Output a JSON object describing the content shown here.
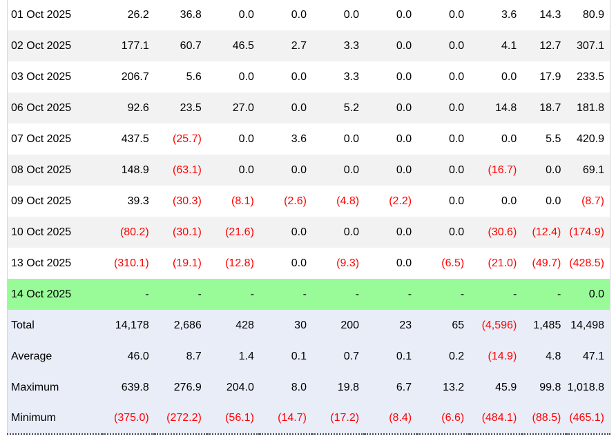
{
  "table": {
    "description": "Daily report table, no visible header row; negatives shown in parentheses in red",
    "negative_format": "parentheses",
    "colors": {
      "text": "#000000",
      "negative_text": "#ff0000",
      "stripe_bg": "#f2f2f2",
      "highlight_bg": "#98fb98",
      "summary_bg": "#e9edf8",
      "side_border": "#d5d5db",
      "bottom_border": "#3c3c50"
    },
    "rows": [
      {
        "label": "01 Oct 2025",
        "type": "data",
        "values": [
          "26.2",
          "36.8",
          "0.0",
          "0.0",
          "0.0",
          "0.0",
          "0.0",
          "3.6",
          "14.3",
          "80.9"
        ]
      },
      {
        "label": "02 Oct 2025",
        "type": "data",
        "values": [
          "177.1",
          "60.7",
          "46.5",
          "2.7",
          "3.3",
          "0.0",
          "0.0",
          "4.1",
          "12.7",
          "307.1"
        ]
      },
      {
        "label": "03 Oct 2025",
        "type": "data",
        "values": [
          "206.7",
          "5.6",
          "0.0",
          "0.0",
          "3.3",
          "0.0",
          "0.0",
          "0.0",
          "17.9",
          "233.5"
        ]
      },
      {
        "label": "06 Oct 2025",
        "type": "data",
        "values": [
          "92.6",
          "23.5",
          "27.0",
          "0.0",
          "5.2",
          "0.0",
          "0.0",
          "14.8",
          "18.7",
          "181.8"
        ]
      },
      {
        "label": "07 Oct 2025",
        "type": "data",
        "values": [
          "437.5",
          "(25.7)",
          "0.0",
          "3.6",
          "0.0",
          "0.0",
          "0.0",
          "0.0",
          "5.5",
          "420.9"
        ]
      },
      {
        "label": "08 Oct 2025",
        "type": "data",
        "values": [
          "148.9",
          "(63.1)",
          "0.0",
          "0.0",
          "0.0",
          "0.0",
          "0.0",
          "(16.7)",
          "0.0",
          "69.1"
        ]
      },
      {
        "label": "09 Oct 2025",
        "type": "data",
        "values": [
          "39.3",
          "(30.3)",
          "(8.1)",
          "(2.6)",
          "(4.8)",
          "(2.2)",
          "0.0",
          "0.0",
          "0.0",
          "(8.7)"
        ]
      },
      {
        "label": "10 Oct 2025",
        "type": "data",
        "values": [
          "(80.2)",
          "(30.1)",
          "(21.6)",
          "0.0",
          "0.0",
          "0.0",
          "0.0",
          "(30.6)",
          "(12.4)",
          "(174.9)"
        ]
      },
      {
        "label": "13 Oct 2025",
        "type": "data",
        "values": [
          "(310.1)",
          "(19.1)",
          "(12.8)",
          "0.0",
          "(9.3)",
          "0.0",
          "(6.5)",
          "(21.0)",
          "(49.7)",
          "(428.5)"
        ]
      },
      {
        "label": "14 Oct 2025",
        "type": "highlight",
        "values": [
          "-",
          "-",
          "-",
          "-",
          "-",
          "-",
          "-",
          "-",
          "-",
          "0.0"
        ]
      },
      {
        "label": "Total",
        "type": "summary",
        "values": [
          "14,178",
          "2,686",
          "428",
          "30",
          "200",
          "23",
          "65",
          "(4,596)",
          "1,485",
          "14,498"
        ]
      },
      {
        "label": "Average",
        "type": "summary",
        "values": [
          "46.0",
          "8.7",
          "1.4",
          "0.1",
          "0.7",
          "0.1",
          "0.2",
          "(14.9)",
          "4.8",
          "47.1"
        ]
      },
      {
        "label": "Maximum",
        "type": "summary",
        "values": [
          "639.8",
          "276.9",
          "204.0",
          "8.0",
          "19.8",
          "6.7",
          "13.2",
          "45.9",
          "99.8",
          "1,018.8"
        ]
      },
      {
        "label": "Minimum",
        "type": "summary",
        "values": [
          "(375.0)",
          "(272.2)",
          "(56.1)",
          "(14.7)",
          "(17.2)",
          "(8.4)",
          "(6.6)",
          "(484.1)",
          "(88.5)",
          "(465.1)"
        ]
      }
    ]
  }
}
